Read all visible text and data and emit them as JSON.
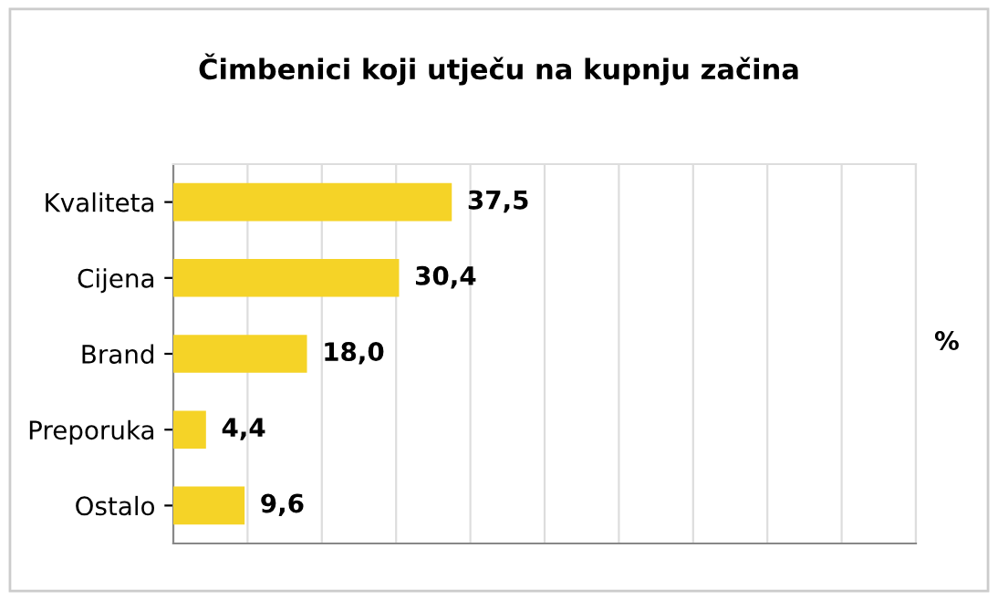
{
  "chart_data": {
    "type": "bar",
    "orientation": "horizontal",
    "title": "Čimbenici koji utječu na kupnju začina",
    "xlabel": "%",
    "categories": [
      "Kvaliteta",
      "Cijena",
      "Brand",
      "Preporuka",
      "Ostalo"
    ],
    "values": [
      37.5,
      30.4,
      18.0,
      4.4,
      9.6
    ],
    "value_labels": [
      "37,5",
      "30,4",
      "18,0",
      "4,4",
      "9,6"
    ],
    "color": "#f5d327",
    "xlim": [
      0,
      100
    ],
    "xticks": [
      {
        "value": 0,
        "label": null
      },
      {
        "value": 10,
        "label": null
      },
      {
        "value": 20,
        "label": null
      },
      {
        "value": 30,
        "label": null
      },
      {
        "value": 40,
        "label": null
      },
      {
        "value": 50,
        "label": null
      },
      {
        "value": 60,
        "label": null
      },
      {
        "value": 70,
        "label": null
      },
      {
        "value": 80,
        "label": null
      },
      {
        "value": 90,
        "label": null
      },
      {
        "value": 100,
        "label": null
      }
    ],
    "grid": "x",
    "tick_labels": "y"
  }
}
